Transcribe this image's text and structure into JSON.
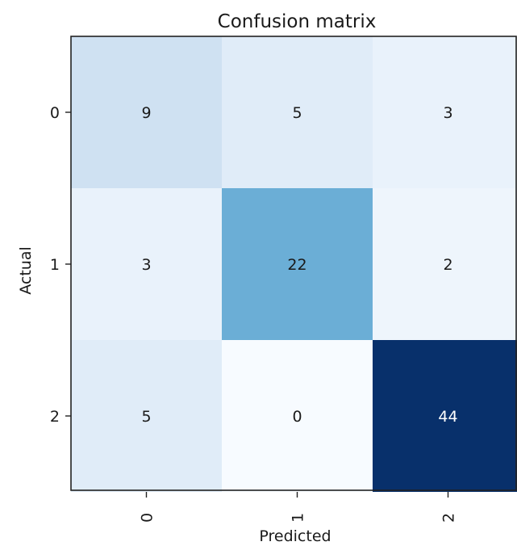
{
  "chart_data": {
    "type": "heatmap",
    "title": "Confusion matrix",
    "xlabel": "Predicted",
    "ylabel": "Actual",
    "x_categories": [
      "0",
      "1",
      "2"
    ],
    "y_categories": [
      "0",
      "1",
      "2"
    ],
    "values": [
      [
        9,
        5,
        3
      ],
      [
        3,
        22,
        2
      ],
      [
        5,
        0,
        44
      ]
    ],
    "value_labels": [
      [
        "9",
        "5",
        "3"
      ],
      [
        "3",
        "22",
        "2"
      ],
      [
        "5",
        "0",
        "44"
      ]
    ],
    "colormap": "Blues",
    "x_tick_rotation": "vertical",
    "grid": false,
    "legend": "none"
  }
}
